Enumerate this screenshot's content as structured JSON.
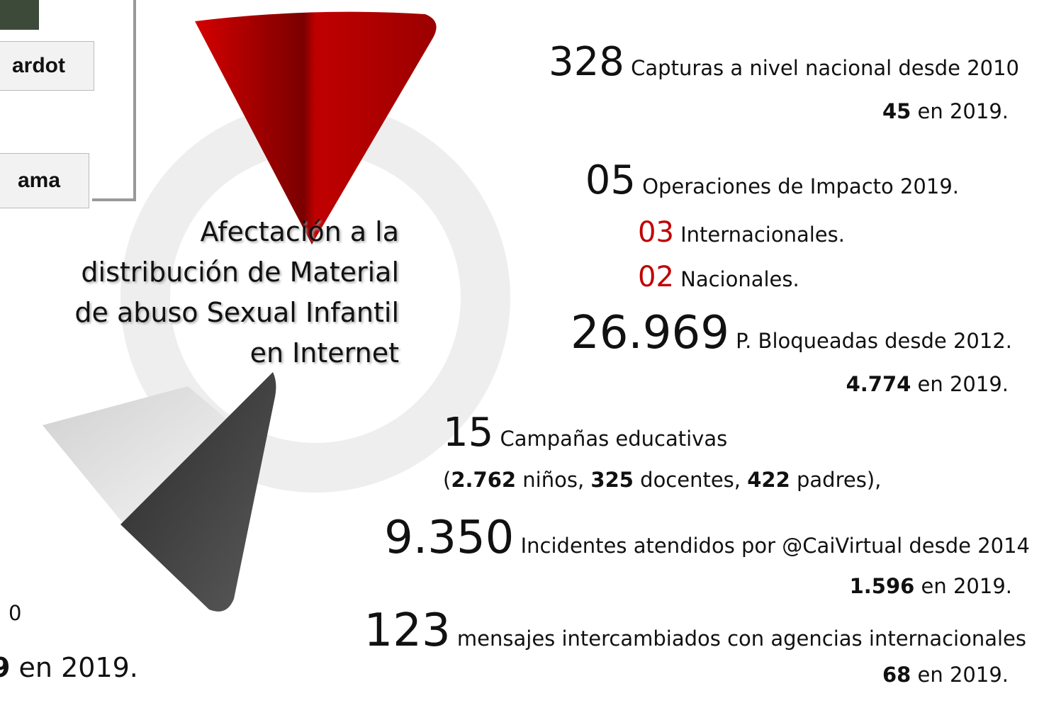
{
  "left_boxes": [
    "ardot",
    "ama"
  ],
  "bottom_left": {
    "line1": "0",
    "number": "9",
    "text": "en 2019."
  },
  "title_lines": [
    "Afectación a la",
    "distribución de Material",
    "de abuso Sexual Infantil",
    "en Internet"
  ],
  "stats": [
    {
      "number": "328",
      "text": "Capturas a nivel nacional desde 2010",
      "sub_number": "45",
      "sub_text": "en 2019."
    },
    {
      "number": "05",
      "text": "Operaciones de Impacto 2019.",
      "items": [
        {
          "number": "03",
          "text": "Internacionales."
        },
        {
          "number": "02",
          "text": "Nacionales."
        }
      ]
    },
    {
      "number": "26.969",
      "text": "P. Bloqueadas desde 2012.",
      "sub_number": "4.774",
      "sub_text": "en 2019."
    },
    {
      "number": "15",
      "text": "Campañas educativas",
      "detail": [
        "(",
        "2.762",
        "niños,",
        "325",
        "docentes,",
        "422",
        "padres),"
      ]
    },
    {
      "number": "9.350",
      "text": "Incidentes atendidos por @CaiVirtual desde 2014",
      "sub_number": "1.596",
      "sub_text": "en 2019."
    },
    {
      "number": "123",
      "text": "mensajes intercambiados con agencias internacionales",
      "sub_number": "68",
      "sub_text": "en 2019."
    }
  ]
}
